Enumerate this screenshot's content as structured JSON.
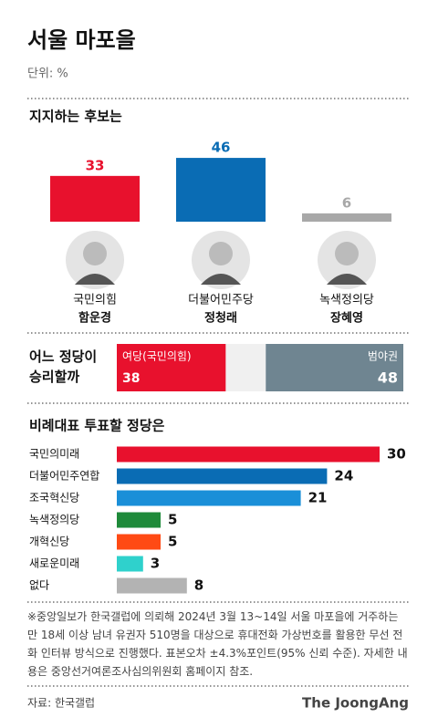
{
  "header": {
    "title": "서울 마포을",
    "unit": "단위: %"
  },
  "chart_data": [
    {
      "type": "bar",
      "title": "지지하는 후보는",
      "categories": [
        "함운경",
        "정청래",
        "장혜영"
      ],
      "parties": [
        "국민의힘",
        "더불어민주당",
        "녹색정의당"
      ],
      "values": [
        33,
        46,
        6
      ],
      "colors": [
        "#e8112d",
        "#0a6cb4",
        "#a8a8a8"
      ]
    },
    {
      "type": "stacked-bar",
      "title": "어느 정당이 승리할까",
      "series": [
        {
          "name": "여당(국민의힘)",
          "color": "#e8112d",
          "values": [
            38
          ]
        },
        {
          "name": "범야권",
          "color": "#6f8591",
          "values": [
            48
          ]
        }
      ]
    },
    {
      "type": "hbar",
      "title": "비례대표 투표할 정당은",
      "categories": [
        "국민의미래",
        "더불어민주연합",
        "조국혁신당",
        "녹색정의당",
        "개혁신당",
        "새로운미래",
        "없다"
      ],
      "values": [
        30,
        24,
        21,
        5,
        5,
        3,
        8
      ],
      "colors": [
        "#e8112d",
        "#0a6cb4",
        "#1a8fd8",
        "#1e8a3a",
        "#ff4a14",
        "#2fd1cc",
        "#b3b3b3"
      ]
    }
  ],
  "footnote": "※중앙일보가 한국갤럽에 의뢰해 2024년 3월 13~14일 서울 마포을에 거주하는 만 18세 이상 남녀 유권자 510명을 대상으로 휴대전화 가상번호를 활용한 무선 전화 인터뷰 방식으로 진행했다. 표본오차 ±4.3%포인트(95% 신뢰 수준). 자세한 내용은 중앙선거여론조사심의위원회 홈페이지 참조.",
  "source": "자료: 한국갤럽",
  "logo": "The JoongAng"
}
